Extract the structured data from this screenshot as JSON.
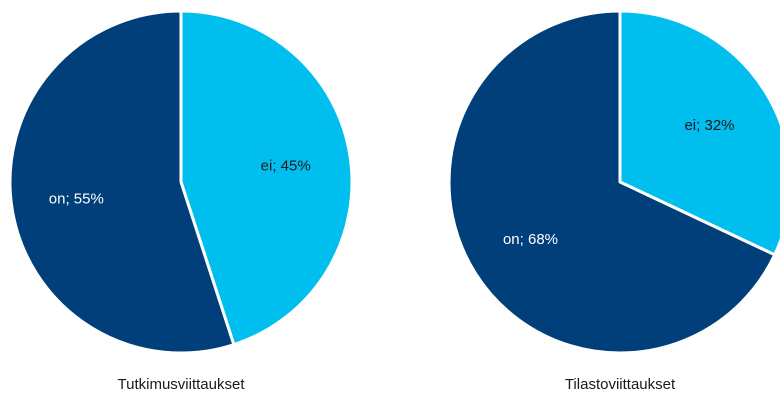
{
  "chart_data": [
    {
      "type": "pie",
      "title": "Tutkimusviittaukset",
      "slices": [
        {
          "name": "ei",
          "value": 45,
          "label": "ei; 45%",
          "color": "#00BFEE"
        },
        {
          "name": "on",
          "value": 55,
          "label": "on; 55%",
          "color": "#003F7A"
        }
      ],
      "start": "12 o'clock",
      "direction": "clockwise",
      "legend": "none"
    },
    {
      "type": "pie",
      "title": "Tilastoviittaukset",
      "slices": [
        {
          "name": "ei",
          "value": 32,
          "label": "ei; 32%",
          "color": "#00BFEE"
        },
        {
          "name": "on",
          "value": 68,
          "label": "on; 68%",
          "color": "#003F7A"
        }
      ],
      "start": "12 o'clock",
      "direction": "clockwise",
      "legend": "none"
    }
  ]
}
